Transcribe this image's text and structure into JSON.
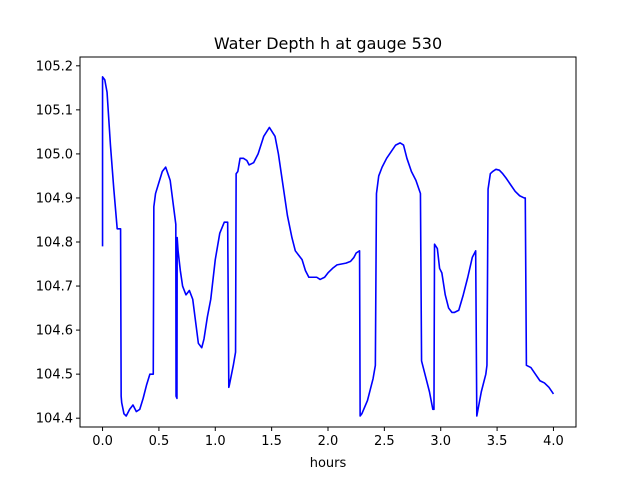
{
  "chart_data": {
    "type": "line",
    "title": "Water Depth h at gauge 530",
    "xlabel": "hours",
    "ylabel": "",
    "xlim": [
      -0.2,
      4.2
    ],
    "ylim": [
      104.38,
      105.22
    ],
    "xticks": [
      0.0,
      0.5,
      1.0,
      1.5,
      2.0,
      2.5,
      3.0,
      3.5,
      4.0
    ],
    "xtick_labels": [
      "0.0",
      "0.5",
      "1.0",
      "1.5",
      "2.0",
      "2.5",
      "3.0",
      "3.5",
      "4.0"
    ],
    "yticks": [
      104.4,
      104.5,
      104.6,
      104.7,
      104.8,
      104.9,
      105.0,
      105.1,
      105.2
    ],
    "ytick_labels": [
      "104.4",
      "104.5",
      "104.6",
      "104.7",
      "104.8",
      "104.9",
      "105.0",
      "105.1",
      "105.2"
    ],
    "grid": false,
    "legend": "none",
    "series": [
      {
        "color": "#0000ff",
        "x": [
          0.0,
          0.0,
          0.02,
          0.04,
          0.07,
          0.1,
          0.13,
          0.16,
          0.165,
          0.17,
          0.19,
          0.21,
          0.24,
          0.27,
          0.3,
          0.33,
          0.36,
          0.39,
          0.42,
          0.45,
          0.455,
          0.47,
          0.5,
          0.53,
          0.56,
          0.6,
          0.63,
          0.65,
          0.652,
          0.66,
          0.662,
          0.67,
          0.69,
          0.71,
          0.74,
          0.77,
          0.8,
          0.83,
          0.85,
          0.88,
          0.9,
          0.93,
          0.96,
          1.0,
          1.04,
          1.08,
          1.11,
          1.12,
          1.125,
          1.16,
          1.18,
          1.185,
          1.2,
          1.22,
          1.25,
          1.28,
          1.3,
          1.34,
          1.38,
          1.43,
          1.48,
          1.53,
          1.56,
          1.6,
          1.64,
          1.68,
          1.71,
          1.74,
          1.77,
          1.8,
          1.83,
          1.86,
          1.9,
          1.93,
          1.97,
          2.0,
          2.04,
          2.08,
          2.12,
          2.16,
          2.2,
          2.23,
          2.25,
          2.28,
          2.285,
          2.3,
          2.35,
          2.4,
          2.42,
          2.43,
          2.45,
          2.48,
          2.52,
          2.56,
          2.6,
          2.64,
          2.67,
          2.7,
          2.74,
          2.78,
          2.82,
          2.83,
          2.86,
          2.9,
          2.93,
          2.94,
          2.945,
          2.97,
          2.99,
          3.01,
          3.04,
          3.07,
          3.1,
          3.12,
          3.16,
          3.2,
          3.24,
          3.28,
          3.31,
          3.32,
          3.36,
          3.4,
          3.41,
          3.42,
          3.44,
          3.46,
          3.49,
          3.52,
          3.55,
          3.58,
          3.62,
          3.66,
          3.7,
          3.74,
          3.75,
          3.76,
          3.8,
          3.84,
          3.88,
          3.92,
          3.96,
          4.0
        ],
        "y": [
          104.79,
          105.175,
          105.168,
          105.14,
          105.02,
          104.92,
          104.83,
          104.83,
          104.45,
          104.435,
          104.41,
          104.405,
          104.42,
          104.43,
          104.415,
          104.42,
          104.445,
          104.475,
          104.5,
          104.5,
          104.88,
          104.91,
          104.935,
          104.96,
          104.97,
          104.94,
          104.88,
          104.84,
          104.45,
          104.445,
          104.81,
          104.78,
          104.735,
          104.7,
          104.68,
          104.69,
          104.67,
          104.61,
          104.57,
          104.56,
          104.58,
          104.63,
          104.67,
          104.76,
          104.82,
          104.845,
          104.845,
          104.47,
          104.475,
          104.52,
          104.55,
          104.955,
          104.96,
          104.99,
          104.99,
          104.985,
          104.975,
          104.98,
          105.0,
          105.04,
          105.06,
          105.04,
          105.0,
          104.93,
          104.86,
          104.81,
          104.78,
          104.77,
          104.76,
          104.735,
          104.72,
          104.72,
          104.72,
          104.715,
          104.72,
          104.73,
          104.74,
          104.748,
          104.75,
          104.752,
          104.756,
          104.765,
          104.775,
          104.78,
          104.405,
          104.41,
          104.44,
          104.49,
          104.52,
          104.91,
          104.95,
          104.97,
          104.99,
          105.005,
          105.02,
          105.025,
          105.02,
          104.99,
          104.96,
          104.94,
          104.91,
          104.53,
          104.5,
          104.46,
          104.42,
          104.42,
          104.795,
          104.785,
          104.74,
          104.73,
          104.68,
          104.65,
          104.64,
          104.64,
          104.645,
          104.68,
          104.72,
          104.765,
          104.78,
          104.405,
          104.46,
          104.5,
          104.52,
          104.92,
          104.955,
          104.96,
          104.965,
          104.963,
          104.955,
          104.945,
          104.93,
          104.915,
          104.905,
          104.9,
          104.9,
          104.52,
          104.515,
          104.5,
          104.485,
          104.48,
          104.47,
          104.455
        ]
      }
    ]
  }
}
